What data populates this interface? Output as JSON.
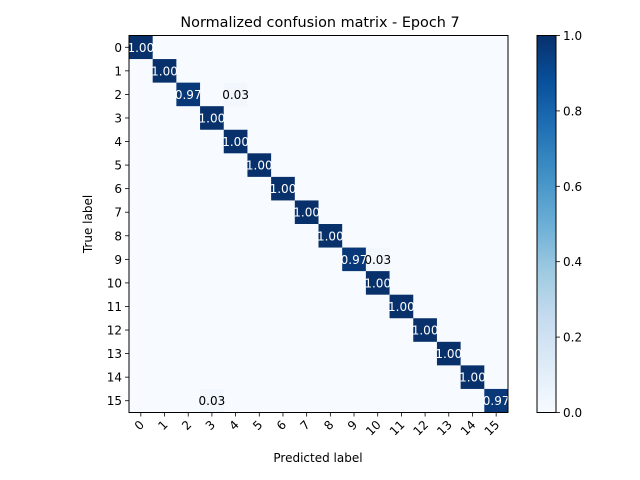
{
  "chart_data": {
    "type": "heatmap",
    "title": "Normalized confusion matrix - Epoch 7",
    "xlabel": "Predicted label",
    "ylabel": "True label",
    "x_tick_labels": [
      "0",
      "1",
      "2",
      "3",
      "4",
      "5",
      "6",
      "7",
      "8",
      "9",
      "10",
      "11",
      "12",
      "13",
      "14",
      "15"
    ],
    "y_tick_labels": [
      "0",
      "1",
      "2",
      "3",
      "4",
      "5",
      "6",
      "7",
      "8",
      "9",
      "10",
      "11",
      "12",
      "13",
      "14",
      "15"
    ],
    "matrix": [
      [
        1,
        0,
        0,
        0,
        0,
        0,
        0,
        0,
        0,
        0,
        0,
        0,
        0,
        0,
        0,
        0
      ],
      [
        0,
        1,
        0,
        0,
        0,
        0,
        0,
        0,
        0,
        0,
        0,
        0,
        0,
        0,
        0,
        0
      ],
      [
        0,
        0,
        0.97,
        0,
        0.03,
        0,
        0,
        0,
        0,
        0,
        0,
        0,
        0,
        0,
        0,
        0
      ],
      [
        0,
        0,
        0,
        1,
        0,
        0,
        0,
        0,
        0,
        0,
        0,
        0,
        0,
        0,
        0,
        0
      ],
      [
        0,
        0,
        0,
        0,
        1,
        0,
        0,
        0,
        0,
        0,
        0,
        0,
        0,
        0,
        0,
        0
      ],
      [
        0,
        0,
        0,
        0,
        0,
        1,
        0,
        0,
        0,
        0,
        0,
        0,
        0,
        0,
        0,
        0
      ],
      [
        0,
        0,
        0,
        0,
        0,
        0,
        1,
        0,
        0,
        0,
        0,
        0,
        0,
        0,
        0,
        0
      ],
      [
        0,
        0,
        0,
        0,
        0,
        0,
        0,
        1,
        0,
        0,
        0,
        0,
        0,
        0,
        0,
        0
      ],
      [
        0,
        0,
        0,
        0,
        0,
        0,
        0,
        0,
        1,
        0,
        0,
        0,
        0,
        0,
        0,
        0
      ],
      [
        0,
        0,
        0,
        0,
        0,
        0,
        0,
        0,
        0,
        0.97,
        0.03,
        0,
        0,
        0,
        0,
        0
      ],
      [
        0,
        0,
        0,
        0,
        0,
        0,
        0,
        0,
        0,
        0,
        1,
        0,
        0,
        0,
        0,
        0
      ],
      [
        0,
        0,
        0,
        0,
        0,
        0,
        0,
        0,
        0,
        0,
        0,
        1,
        0,
        0,
        0,
        0
      ],
      [
        0,
        0,
        0,
        0,
        0,
        0,
        0,
        0,
        0,
        0,
        0,
        0,
        1,
        0,
        0,
        0
      ],
      [
        0,
        0,
        0,
        0,
        0,
        0,
        0,
        0,
        0,
        0,
        0,
        0,
        0,
        1,
        0,
        0
      ],
      [
        0,
        0,
        0,
        0,
        0,
        0,
        0,
        0,
        0,
        0,
        0,
        0,
        0,
        0,
        1,
        0
      ],
      [
        0,
        0,
        0,
        0.03,
        0,
        0,
        0,
        0,
        0,
        0,
        0,
        0,
        0,
        0,
        0,
        0.97
      ]
    ],
    "cell_labels": [
      {
        "row": 0,
        "col": 0,
        "text": "1.00"
      },
      {
        "row": 1,
        "col": 1,
        "text": "1.00"
      },
      {
        "row": 2,
        "col": 2,
        "text": "0.97"
      },
      {
        "row": 2,
        "col": 4,
        "text": "0.03"
      },
      {
        "row": 3,
        "col": 3,
        "text": "1.00"
      },
      {
        "row": 4,
        "col": 4,
        "text": "1.00"
      },
      {
        "row": 5,
        "col": 5,
        "text": "1.00"
      },
      {
        "row": 6,
        "col": 6,
        "text": "1.00"
      },
      {
        "row": 7,
        "col": 7,
        "text": "1.00"
      },
      {
        "row": 8,
        "col": 8,
        "text": "1.00"
      },
      {
        "row": 9,
        "col": 9,
        "text": "0.97"
      },
      {
        "row": 9,
        "col": 10,
        "text": "0.03"
      },
      {
        "row": 10,
        "col": 10,
        "text": "1.00"
      },
      {
        "row": 11,
        "col": 11,
        "text": "1.00"
      },
      {
        "row": 12,
        "col": 12,
        "text": "1.00"
      },
      {
        "row": 13,
        "col": 13,
        "text": "1.00"
      },
      {
        "row": 14,
        "col": 14,
        "text": "1.00"
      },
      {
        "row": 15,
        "col": 3,
        "text": "0.03"
      },
      {
        "row": 15,
        "col": 15,
        "text": "0.97"
      }
    ],
    "colorbar": {
      "colormap": "Blues",
      "range": [
        0,
        1
      ],
      "tick_labels": [
        "0.0",
        "0.2",
        "0.4",
        "0.6",
        "0.8",
        "1.0"
      ],
      "tick_values": [
        0,
        0.2,
        0.4,
        0.6,
        0.8,
        1.0
      ]
    },
    "colors": {
      "low": "#f7fbff",
      "high": "#08306b"
    },
    "grid": false
  }
}
